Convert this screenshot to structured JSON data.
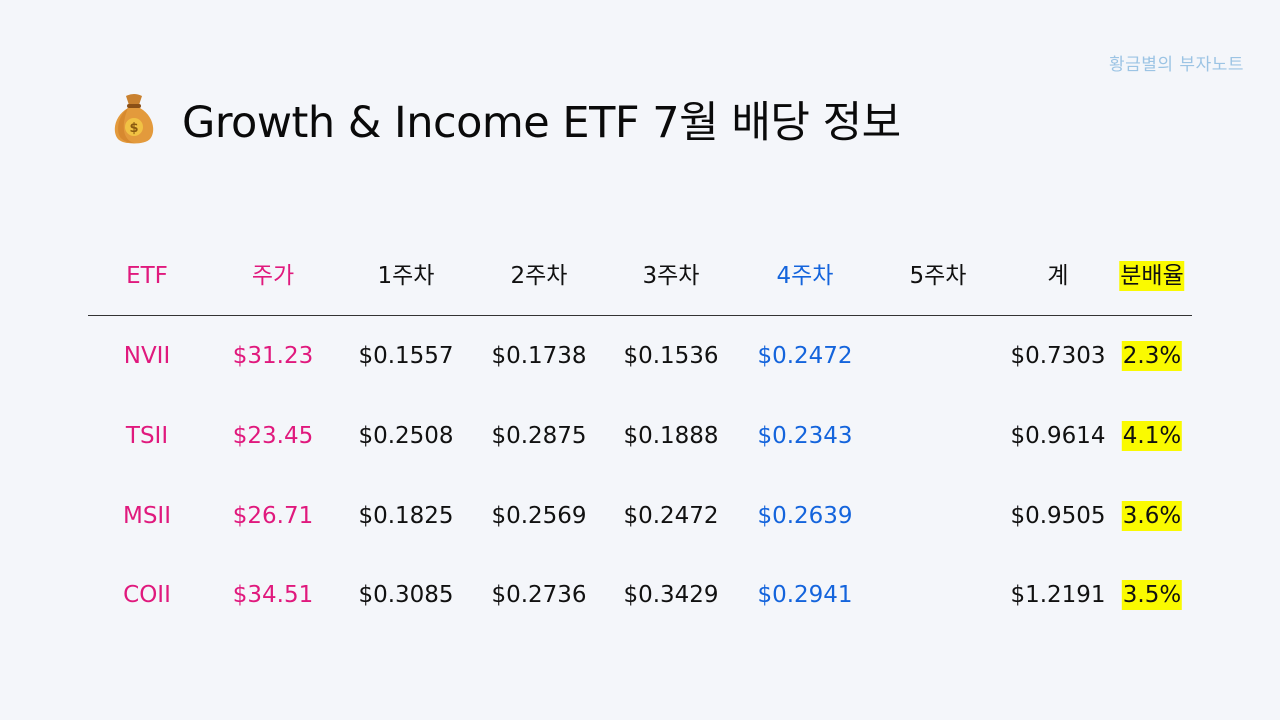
{
  "watermark": "황금별의 부자노트",
  "title": "Growth & Income ETF 7월 배당 정보",
  "icon": "money-bag-icon",
  "colors": {
    "ticker": "#e0197d",
    "week4": "#1464dc",
    "highlight": "#fafa00"
  },
  "table": {
    "headers": [
      "ETF",
      "주가",
      "1주차",
      "2주차",
      "3주차",
      "4주차",
      "5주차",
      "계",
      "분배율"
    ],
    "rows": [
      {
        "etf": "NVII",
        "price": "$31.23",
        "w1": "$0.1557",
        "w2": "$0.1738",
        "w3": "$0.1536",
        "w4": "$0.2472",
        "w5": "",
        "total": "$0.7303",
        "yield": "2.3%"
      },
      {
        "etf": "TSII",
        "price": "$23.45",
        "w1": "$0.2508",
        "w2": "$0.2875",
        "w3": "$0.1888",
        "w4": "$0.2343",
        "w5": "",
        "total": "$0.9614",
        "yield": "4.1%"
      },
      {
        "etf": "MSII",
        "price": "$26.71",
        "w1": "$0.1825",
        "w2": "$0.2569",
        "w3": "$0.2472",
        "w4": "$0.2639",
        "w5": "",
        "total": "$0.9505",
        "yield": "3.6%"
      },
      {
        "etf": "COII",
        "price": "$34.51",
        "w1": "$0.3085",
        "w2": "$0.2736",
        "w3": "$0.3429",
        "w4": "$0.2941",
        "w5": "",
        "total": "$1.2191",
        "yield": "3.5%"
      }
    ]
  }
}
